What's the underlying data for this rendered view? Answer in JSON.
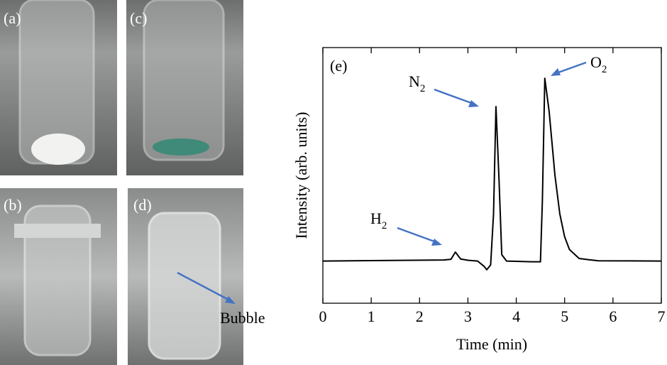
{
  "chart_data": {
    "type": "line",
    "panel_labels": [
      "(a)",
      "(c)",
      "(b)",
      "(d)"
    ],
    "photo_note": "Bubble",
    "panel_label": "(e)",
    "xlabel": "Time (min)",
    "ylabel": "Intensity (arb. units)",
    "xlim": [
      0,
      7
    ],
    "xticks": [
      0,
      1,
      2,
      3,
      4,
      5,
      6,
      7
    ],
    "ylim": [
      0,
      100
    ],
    "color": "#000000",
    "x": [
      0,
      2.5,
      2.65,
      2.74,
      2.85,
      3.0,
      3.2,
      3.33,
      3.39,
      3.47,
      3.53,
      3.58,
      3.64,
      3.7,
      3.8,
      4.0,
      4.3,
      4.5,
      4.54,
      4.59,
      4.68,
      4.8,
      4.9,
      5.0,
      5.1,
      5.3,
      5.5,
      5.7,
      7
    ],
    "values": [
      16.5,
      16.9,
      17.2,
      20,
      17.3,
      16.8,
      16.5,
      14.5,
      13.1,
      15,
      35,
      76.9,
      50,
      19,
      16.5,
      16.4,
      16.2,
      16.2,
      40,
      88,
      75,
      50,
      35,
      26,
      21,
      17.5,
      17,
      16.6,
      16.5
    ],
    "annotations": [
      {
        "text": "H",
        "sub": "2"
      },
      {
        "text": "N",
        "sub": "2"
      },
      {
        "text": "O",
        "sub": "2"
      }
    ]
  }
}
